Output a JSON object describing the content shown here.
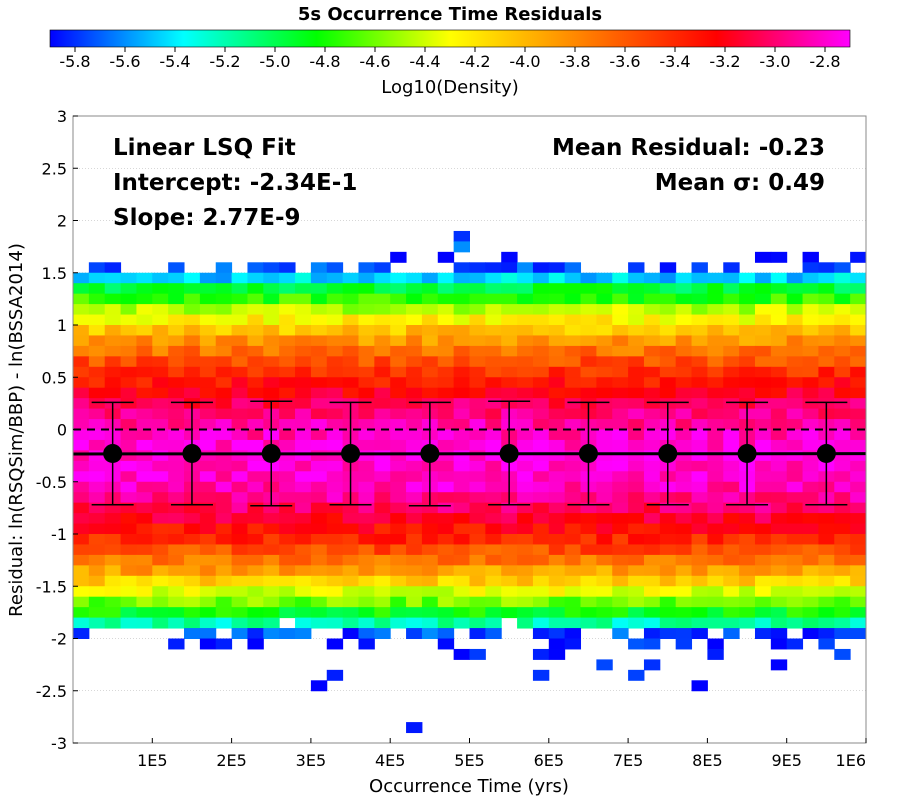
{
  "chart_data": {
    "type": "heatmap",
    "title": "5s Occurrence Time Residuals",
    "xlabel": "Occurrence Time (yrs)",
    "ylabel": "Residual: ln(RSQSim/BBP) - ln(BSSA2014)",
    "xlim": [
      0,
      1000000
    ],
    "ylim": [
      -3,
      3
    ],
    "x_ticks": [
      100000,
      200000,
      300000,
      400000,
      500000,
      600000,
      700000,
      800000,
      900000,
      1000000
    ],
    "x_tick_labels": [
      "1E5",
      "2E5",
      "3E5",
      "4E5",
      "5E5",
      "6E5",
      "7E5",
      "8E5",
      "9E5",
      "1E6"
    ],
    "y_ticks": [
      -3,
      -2.5,
      -2,
      -1.5,
      -1,
      -0.5,
      0,
      0.5,
      1,
      1.5,
      2,
      2.5,
      3
    ],
    "y_tick_labels": [
      "-3",
      "-2.5",
      "-2",
      "-1.5",
      "-1",
      "-0.5",
      "0",
      "0.5",
      "1",
      "1.5",
      "2",
      "2.5",
      "3"
    ],
    "grid": true,
    "colorbar": {
      "label": "Log10(Density)",
      "range": [
        -5.9,
        -2.7
      ],
      "ticks": [
        -5.8,
        -5.6,
        -5.4,
        -5.2,
        -5.0,
        -4.8,
        -4.6,
        -4.4,
        -4.2,
        -4.0,
        -3.8,
        -3.6,
        -3.4,
        -3.2,
        -3.0,
        -2.8
      ],
      "tick_labels": [
        "-5.8",
        "-5.6",
        "-5.4",
        "-5.2",
        "-5.0",
        "-4.8",
        "-4.6",
        "-4.4",
        "-4.2",
        "-4.0",
        "-3.8",
        "-3.6",
        "-3.4",
        "-3.2",
        "-3.0",
        "-2.8"
      ],
      "colors": [
        "#0000ff",
        "#00ffff",
        "#00ff00",
        "#ffff00",
        "#ff8000",
        "#ff0000",
        "#ff00ff"
      ]
    },
    "heatmap": {
      "x_bins": 50,
      "x_range": [
        0,
        1000000
      ],
      "y_bin_width": 0.1,
      "profile": [
        {
          "y": 1.65,
          "v": -5.85,
          "p": 0.13
        },
        {
          "y": 1.55,
          "v": -5.75,
          "p": 0.45
        },
        {
          "y": 1.45,
          "v": -5.45,
          "p": 1.0
        },
        {
          "y": 1.35,
          "v": -4.95,
          "p": 1.0
        },
        {
          "y": 1.25,
          "v": -4.75,
          "p": 1.0
        },
        {
          "y": 1.15,
          "v": -4.45,
          "p": 1.0
        },
        {
          "y": 1.05,
          "v": -4.25,
          "p": 1.0
        },
        {
          "y": 0.95,
          "v": -4.05,
          "p": 1.0
        },
        {
          "y": 0.85,
          "v": -3.85,
          "p": 1.0
        },
        {
          "y": 0.75,
          "v": -3.7,
          "p": 1.0
        },
        {
          "y": 0.65,
          "v": -3.55,
          "p": 1.0
        },
        {
          "y": 0.55,
          "v": -3.42,
          "p": 1.0
        },
        {
          "y": 0.45,
          "v": -3.3,
          "p": 1.0
        },
        {
          "y": 0.35,
          "v": -3.18,
          "p": 1.0
        },
        {
          "y": 0.25,
          "v": -3.07,
          "p": 1.0
        },
        {
          "y": 0.15,
          "v": -2.97,
          "p": 1.0
        },
        {
          "y": 0.05,
          "v": -2.9,
          "p": 1.0
        },
        {
          "y": -0.05,
          "v": -2.85,
          "p": 1.0
        },
        {
          "y": -0.15,
          "v": -2.8,
          "p": 1.0
        },
        {
          "y": -0.25,
          "v": -2.78,
          "p": 1.0
        },
        {
          "y": -0.35,
          "v": -2.78,
          "p": 1.0
        },
        {
          "y": -0.45,
          "v": -2.8,
          "p": 1.0
        },
        {
          "y": -0.55,
          "v": -2.85,
          "p": 1.0
        },
        {
          "y": -0.65,
          "v": -2.93,
          "p": 1.0
        },
        {
          "y": -0.75,
          "v": -3.03,
          "p": 1.0
        },
        {
          "y": -0.85,
          "v": -3.15,
          "p": 1.0
        },
        {
          "y": -0.95,
          "v": -3.27,
          "p": 1.0
        },
        {
          "y": -1.05,
          "v": -3.4,
          "p": 1.0
        },
        {
          "y": -1.15,
          "v": -3.55,
          "p": 1.0
        },
        {
          "y": -1.25,
          "v": -3.72,
          "p": 1.0
        },
        {
          "y": -1.35,
          "v": -3.9,
          "p": 1.0
        },
        {
          "y": -1.45,
          "v": -4.1,
          "p": 1.0
        },
        {
          "y": -1.55,
          "v": -4.35,
          "p": 1.0
        },
        {
          "y": -1.65,
          "v": -4.6,
          "p": 1.0
        },
        {
          "y": -1.75,
          "v": -4.85,
          "p": 1.0
        },
        {
          "y": -1.85,
          "v": -5.2,
          "p": 0.97
        },
        {
          "y": -1.95,
          "v": -5.75,
          "p": 0.55
        },
        {
          "y": -2.05,
          "v": -5.85,
          "p": 0.27
        },
        {
          "y": -2.15,
          "v": -5.85,
          "p": 0.13
        },
        {
          "y": -2.25,
          "v": -5.9,
          "p": 0.07
        },
        {
          "y": -2.35,
          "v": -5.9,
          "p": 0.05
        },
        {
          "y": -2.45,
          "v": -5.9,
          "p": 0.04
        }
      ],
      "isolated": [
        {
          "x": 490000,
          "y": 1.85,
          "v": -5.8
        },
        {
          "x": 490000,
          "y": 1.75,
          "v": -5.6
        },
        {
          "x": 430000,
          "y": -2.85,
          "v": -5.85
        }
      ]
    },
    "series": [
      {
        "x": [
          50000,
          150000,
          250000,
          350000,
          450000,
          550000,
          650000,
          750000,
          850000,
          950000
        ],
        "mean": [
          -0.23,
          -0.23,
          -0.23,
          -0.23,
          -0.23,
          -0.23,
          -0.23,
          -0.23,
          -0.23,
          -0.23
        ],
        "upper": [
          0.26,
          0.26,
          0.27,
          0.26,
          0.26,
          0.27,
          0.26,
          0.26,
          0.26,
          0.26
        ],
        "lower": [
          -0.72,
          -0.72,
          -0.73,
          -0.72,
          -0.73,
          -0.72,
          -0.72,
          -0.72,
          -0.72,
          -0.72
        ]
      }
    ],
    "fit_line": {
      "intercept": -0.234,
      "slope": 2.77e-09
    },
    "zero_line": 0,
    "annotations": {
      "fit_title": "Linear LSQ Fit",
      "intercept": "Intercept: -2.34E-1",
      "slope": "Slope: 2.77E-9",
      "mean_residual": "Mean Residual: -0.23",
      "mean_sigma": "Mean σ: 0.49"
    }
  }
}
